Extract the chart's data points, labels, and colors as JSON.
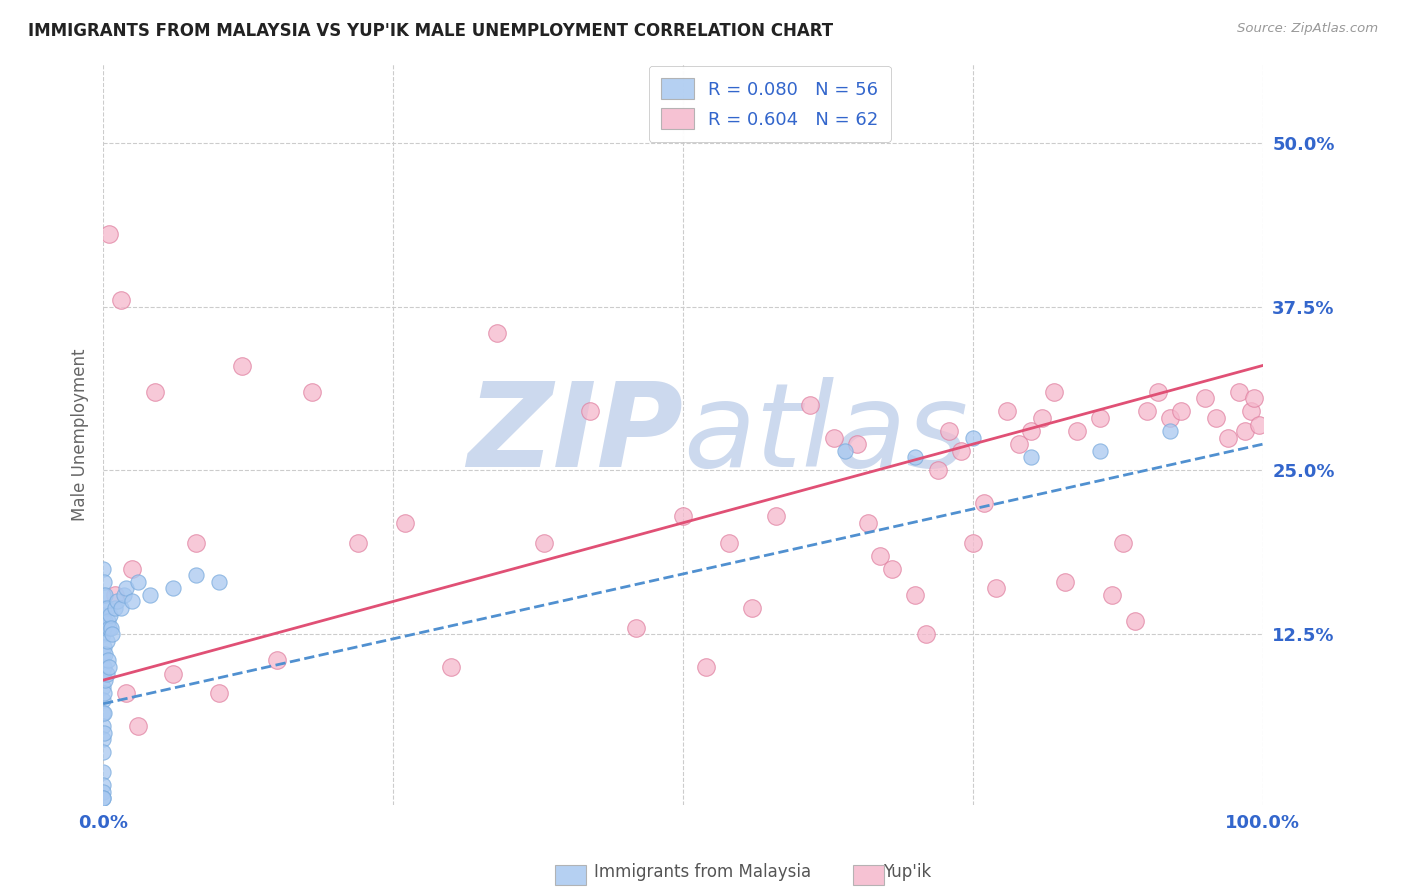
{
  "title": "IMMIGRANTS FROM MALAYSIA VS YUP'IK MALE UNEMPLOYMENT CORRELATION CHART",
  "source": "Source: ZipAtlas.com",
  "ylabel": "Male Unemployment",
  "watermark_zip": "ZIP",
  "watermark_atlas": "atlas",
  "watermark_color": "#ccd9ee",
  "malaysia_color": "#a8c8f0",
  "malaysia_edge": "#7aabdd",
  "yupik_color": "#f5b8cc",
  "yupik_edge": "#e080a0",
  "trend_malaysia_color": "#5090d0",
  "trend_yupik_color": "#e05075",
  "background_color": "#ffffff",
  "grid_color": "#cccccc",
  "xlim": [
    0.0,
    1.0
  ],
  "ylim": [
    -0.005,
    0.56
  ],
  "yticks_right": [
    0.125,
    0.25,
    0.375,
    0.5
  ],
  "ytick_right_labels": [
    "12.5%",
    "25.0%",
    "37.5%",
    "50.0%"
  ],
  "xticks": [
    0.0,
    1.0
  ],
  "xtick_labels": [
    "0.0%",
    "100.0%"
  ],
  "footer_left": "Immigrants from Malaysia",
  "footer_right": "Yup'ik",
  "legend_r1": "R = 0.080   N = 56",
  "legend_r2": "R = 0.604   N = 62",
  "malaysia_x": [
    0.0,
    0.0,
    0.0,
    0.0,
    0.0,
    0.0,
    0.0,
    0.0,
    0.0,
    0.0,
    0.0,
    0.0,
    0.0,
    0.0,
    0.0,
    0.0,
    0.0,
    0.001,
    0.001,
    0.001,
    0.001,
    0.001,
    0.001,
    0.001,
    0.001,
    0.002,
    0.002,
    0.002,
    0.002,
    0.003,
    0.003,
    0.003,
    0.004,
    0.004,
    0.005,
    0.005,
    0.006,
    0.007,
    0.008,
    0.01,
    0.012,
    0.015,
    0.018,
    0.02,
    0.025,
    0.03,
    0.04,
    0.06,
    0.08,
    0.1,
    0.64,
    0.7,
    0.75,
    0.8,
    0.86,
    0.92
  ],
  "malaysia_y": [
    0.175,
    0.155,
    0.14,
    0.125,
    0.11,
    0.095,
    0.085,
    0.075,
    0.065,
    0.055,
    0.045,
    0.035,
    0.02,
    0.01,
    0.005,
    0.0,
    0.0,
    0.165,
    0.145,
    0.13,
    0.115,
    0.1,
    0.08,
    0.065,
    0.05,
    0.155,
    0.135,
    0.11,
    0.09,
    0.145,
    0.12,
    0.095,
    0.135,
    0.105,
    0.13,
    0.1,
    0.14,
    0.13,
    0.125,
    0.145,
    0.15,
    0.145,
    0.155,
    0.16,
    0.15,
    0.165,
    0.155,
    0.16,
    0.17,
    0.165,
    0.265,
    0.26,
    0.275,
    0.26,
    0.265,
    0.28
  ],
  "yupik_x": [
    0.005,
    0.01,
    0.015,
    0.02,
    0.025,
    0.03,
    0.045,
    0.06,
    0.08,
    0.1,
    0.12,
    0.15,
    0.18,
    0.22,
    0.26,
    0.3,
    0.34,
    0.38,
    0.42,
    0.46,
    0.5,
    0.52,
    0.54,
    0.56,
    0.58,
    0.61,
    0.63,
    0.65,
    0.66,
    0.67,
    0.68,
    0.7,
    0.71,
    0.72,
    0.73,
    0.74,
    0.75,
    0.76,
    0.77,
    0.78,
    0.79,
    0.8,
    0.81,
    0.82,
    0.83,
    0.84,
    0.86,
    0.87,
    0.88,
    0.89,
    0.9,
    0.91,
    0.92,
    0.93,
    0.95,
    0.96,
    0.97,
    0.98,
    0.985,
    0.99,
    0.993,
    0.997
  ],
  "yupik_y": [
    0.43,
    0.155,
    0.38,
    0.08,
    0.175,
    0.055,
    0.31,
    0.095,
    0.195,
    0.08,
    0.33,
    0.105,
    0.31,
    0.195,
    0.21,
    0.1,
    0.355,
    0.195,
    0.295,
    0.13,
    0.215,
    0.1,
    0.195,
    0.145,
    0.215,
    0.3,
    0.275,
    0.27,
    0.21,
    0.185,
    0.175,
    0.155,
    0.125,
    0.25,
    0.28,
    0.265,
    0.195,
    0.225,
    0.16,
    0.295,
    0.27,
    0.28,
    0.29,
    0.31,
    0.165,
    0.28,
    0.29,
    0.155,
    0.195,
    0.135,
    0.295,
    0.31,
    0.29,
    0.295,
    0.305,
    0.29,
    0.275,
    0.31,
    0.28,
    0.295,
    0.305,
    0.285
  ],
  "trend_malaysia_x0": 0.0,
  "trend_malaysia_x1": 1.0,
  "trend_malaysia_y0": 0.072,
  "trend_malaysia_y1": 0.27,
  "trend_yupik_x0": 0.0,
  "trend_yupik_x1": 1.0,
  "trend_yupik_y0": 0.09,
  "trend_yupik_y1": 0.33
}
